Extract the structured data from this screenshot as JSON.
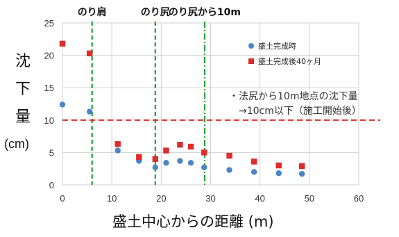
{
  "chart_data": {
    "type": "scatter",
    "title": "",
    "xlabel": "盛土中心からの距離 (m)",
    "ylabel_chars": [
      "沈",
      "下",
      "量"
    ],
    "ylabel_unit": "(cm)",
    "xlim": [
      0,
      60
    ],
    "ylim": [
      0,
      25
    ],
    "xticks": [
      0,
      10,
      20,
      30,
      40,
      50,
      60
    ],
    "yticks": [
      0,
      5,
      10,
      15,
      20,
      25
    ],
    "grid": true,
    "legend_position": "top-right",
    "series": [
      {
        "name": "盛土完成時",
        "marker": "circle",
        "color": "#4a86c5",
        "points": [
          [
            0,
            12.4
          ],
          [
            5.5,
            11.3
          ],
          [
            11.2,
            5.3
          ],
          [
            15.5,
            3.7
          ],
          [
            18.8,
            2.7
          ],
          [
            21,
            3.4
          ],
          [
            23.8,
            3.7
          ],
          [
            26,
            3.4
          ],
          [
            28.7,
            2.7
          ],
          [
            33.8,
            2.3
          ],
          [
            38.8,
            2.0
          ],
          [
            43.8,
            1.8
          ],
          [
            48.5,
            1.7
          ]
        ]
      },
      {
        "name": "盛土完成後40ヶ月",
        "marker": "square",
        "color": "#e02b2b",
        "points": [
          [
            0,
            21.8
          ],
          [
            5.5,
            20.3
          ],
          [
            11.2,
            6.3
          ],
          [
            15.5,
            4.3
          ],
          [
            18.8,
            4.0
          ],
          [
            21,
            5.3
          ],
          [
            23.8,
            6.2
          ],
          [
            26,
            5.9
          ],
          [
            28.7,
            5.0
          ],
          [
            33.8,
            4.5
          ],
          [
            38.8,
            3.6
          ],
          [
            43.8,
            3.0
          ],
          [
            48.5,
            2.9
          ]
        ]
      }
    ],
    "vertical_lines": [
      {
        "x": 6,
        "label": "のり肩",
        "color": "#22a33a",
        "style": "dashed"
      },
      {
        "x": 18.8,
        "label": "のり尻",
        "color": "#22a33a",
        "style": "dashed"
      },
      {
        "x": 28.8,
        "label": "のり尻から10m",
        "color": "#22a33a",
        "style": "dashdot"
      }
    ],
    "threshold_line": {
      "y": 10,
      "color": "#e02b2b",
      "style": "dashed"
    },
    "annotation": {
      "line1": "・法尻から10m地点の沈下量",
      "line2": "→10cm以下（施工開始後）"
    }
  }
}
